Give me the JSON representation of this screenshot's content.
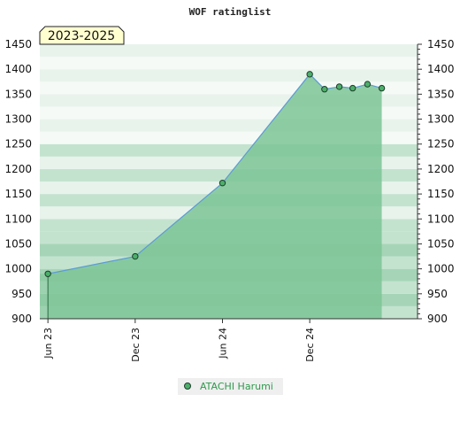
{
  "chart_data": {
    "type": "area",
    "title": "WOF ratinglist",
    "period_label": "2023-2025",
    "xlabel": "",
    "ylabel": "",
    "ylim": [
      900,
      1450
    ],
    "yticks": [
      900,
      950,
      1000,
      1050,
      1100,
      1150,
      1200,
      1250,
      1300,
      1350,
      1400,
      1450
    ],
    "xlim": [
      "2023-05-15",
      "2025-07-15"
    ],
    "xticks": [
      {
        "date": "2023-06-01",
        "label": "Jun 23"
      },
      {
        "date": "2023-12-01",
        "label": "Dec 23"
      },
      {
        "date": "2024-06-01",
        "label": "Jun 24"
      },
      {
        "date": "2024-12-01",
        "label": "Dec 24"
      }
    ],
    "series": [
      {
        "name": "ATACHI Harumi",
        "x": [
          "2023-06-01",
          "2023-12-01",
          "2024-06-01",
          "2024-12-01",
          "2025-01-01",
          "2025-02-01",
          "2025-03-01",
          "2025-04-01",
          "2025-05-01"
        ],
        "y": [
          990,
          1025,
          1172,
          1390,
          1360,
          1365,
          1362,
          1370,
          1362
        ]
      }
    ],
    "colors": {
      "area": "#7dc497",
      "line": "#5b9bd5",
      "marker": "#4caf6a",
      "band_light": "#e8f3ec",
      "band_mid": "#c4e3cf",
      "band_dark": "#a5d5b6"
    },
    "grid": true,
    "legend_position": "bottom-center"
  }
}
